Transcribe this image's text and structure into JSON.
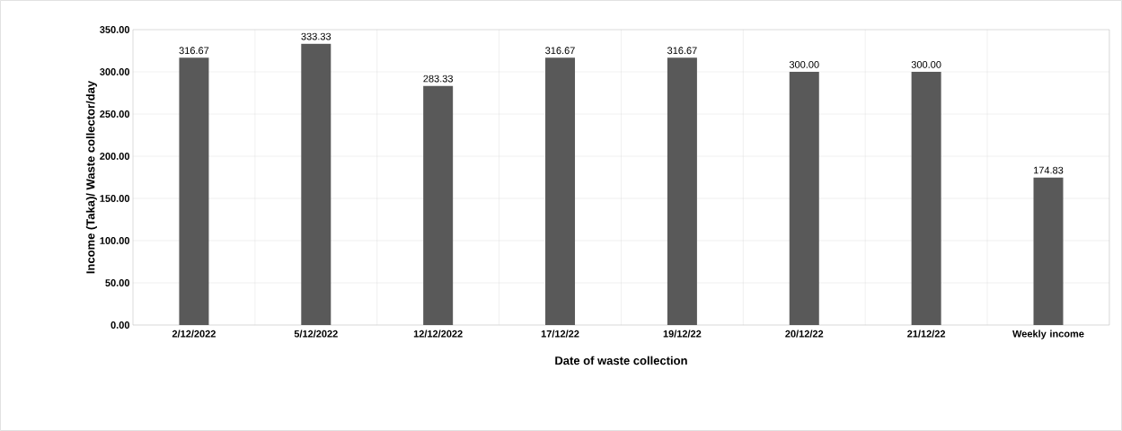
{
  "chart_data": {
    "type": "bar",
    "xlabel": "Date of waste collection",
    "ylabel": "Income (Taka)/ Waste collector/day",
    "categories": [
      "2/12/2022",
      "5/12/2022",
      "12/12/2022",
      "17/12/22",
      "19/12/22",
      "20/12/22",
      "21/12/22",
      "Weekly income"
    ],
    "values": [
      316.67,
      333.33,
      283.33,
      316.67,
      316.67,
      300.0,
      300.0,
      174.83
    ],
    "value_labels": [
      "316.67",
      "333.33",
      "283.33",
      "316.67",
      "316.67",
      "300.00",
      "300.00",
      "174.83"
    ],
    "color": "#595959",
    "ylim": [
      0,
      350
    ],
    "yticks": [
      {
        "value": 0,
        "label": "0.00"
      },
      {
        "value": 50,
        "label": "50.00"
      },
      {
        "value": 100,
        "label": "100.00"
      },
      {
        "value": 150,
        "label": "150.00"
      },
      {
        "value": 200,
        "label": "200.00"
      },
      {
        "value": 250,
        "label": "250.00"
      },
      {
        "value": 300,
        "label": "300.00"
      },
      {
        "value": 350,
        "label": "350.00"
      }
    ],
    "grid": true
  }
}
